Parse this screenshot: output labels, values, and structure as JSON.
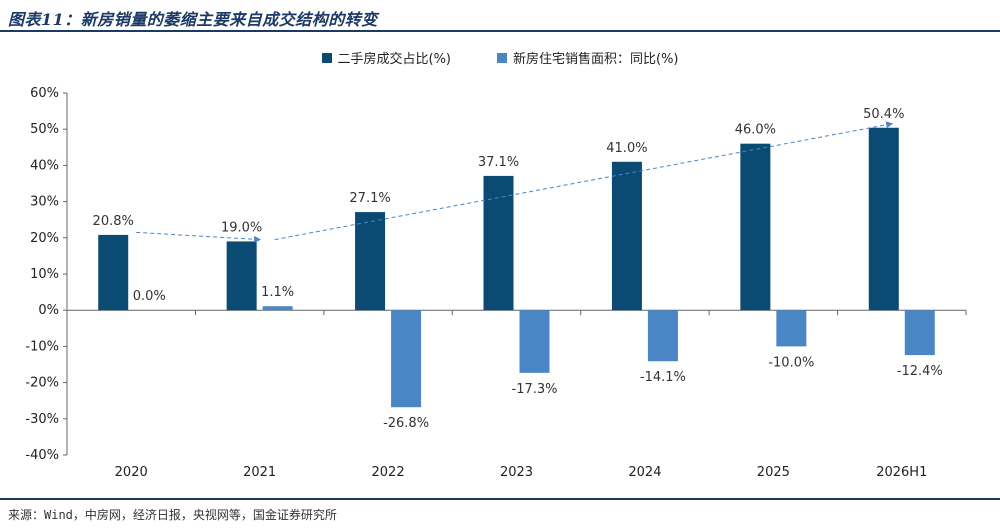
{
  "figure_title": "图表11：新房销量的萎缩主要来自成交结构的转变",
  "source": "来源：Wind，中房网，经济日报，央视网等，国金证券研究所",
  "chart_data": {
    "type": "bar",
    "categories": [
      "2020",
      "2021",
      "2022",
      "2023",
      "2024",
      "2025",
      "2026H1"
    ],
    "series": [
      {
        "name": "二手房成交占比(%)",
        "color": "#0b4a72",
        "values": [
          20.8,
          19.0,
          27.1,
          37.1,
          41.0,
          46.0,
          50.4
        ],
        "labels": [
          "20.8%",
          "19.0%",
          "27.1%",
          "37.1%",
          "41.0%",
          "46.0%",
          "50.4%"
        ]
      },
      {
        "name": "新房住宅销售面积：同比(%)",
        "color": "#4a86c5",
        "values": [
          0.0,
          1.1,
          -26.8,
          -17.3,
          -14.1,
          -10.0,
          -12.4
        ],
        "labels": [
          "0.0%",
          "1.1%",
          "-26.8%",
          "-17.3%",
          "-14.1%",
          "-10.0%",
          "-12.4%"
        ]
      }
    ],
    "ylim": [
      -40,
      60
    ],
    "yticks": [
      -40,
      -30,
      -20,
      -10,
      0,
      10,
      20,
      30,
      40,
      50,
      60
    ],
    "ytick_labels": [
      "-40%",
      "-30%",
      "-20%",
      "-10%",
      "0%",
      "10%",
      "20%",
      "30%",
      "40%",
      "50%",
      "60%"
    ],
    "legend_position": "top",
    "grid": false,
    "annotations": [
      {
        "type": "dashed-arrow",
        "from": {
          "x": "2020",
          "y": 21.5
        },
        "to": {
          "x": "2021",
          "y": 19.5
        }
      },
      {
        "type": "dashed-arrow",
        "from": {
          "x": "2021",
          "y": 19.5
        },
        "to": {
          "x": "2026H1",
          "y": 51.5
        }
      }
    ]
  }
}
